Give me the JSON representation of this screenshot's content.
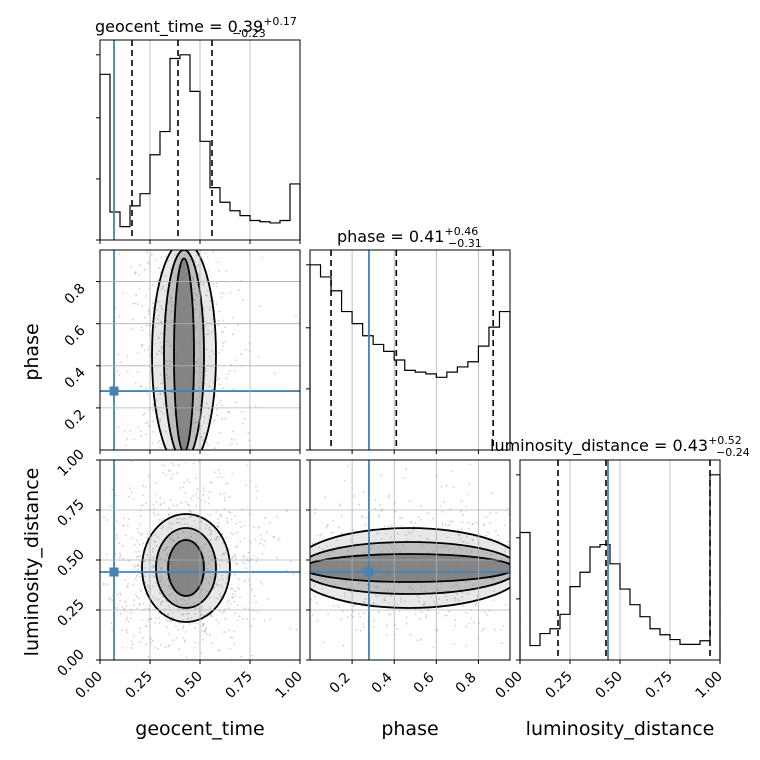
{
  "chart_data": {
    "type": "corner",
    "params": [
      "geocent_time",
      "phase",
      "luminosity_distance"
    ],
    "ranges": [
      [
        0.0,
        1.0
      ],
      [
        0.0,
        0.95
      ],
      [
        0.0,
        1.0
      ]
    ],
    "truths": [
      0.07,
      0.28,
      0.44
    ],
    "truth_color": "#4682b4",
    "grid": true,
    "titles": [
      {
        "lead": "geocent_time = 0.39",
        "plus": "+0.17",
        "minus": "−0.23"
      },
      {
        "lead": "phase = 0.41",
        "plus": "+0.46",
        "minus": "−0.31"
      },
      {
        "lead": "luminosity_distance = 0.43",
        "plus": "+0.52",
        "minus": "−0.24"
      }
    ],
    "quantiles": [
      [
        0.16,
        0.39,
        0.56
      ],
      [
        0.1,
        0.41,
        0.87
      ],
      [
        0.19,
        0.43,
        0.95
      ]
    ],
    "histograms": [
      {
        "param": "geocent_time",
        "edges": [
          0.0,
          0.05,
          0.1,
          0.15,
          0.2,
          0.25,
          0.3,
          0.35,
          0.4,
          0.45,
          0.5,
          0.55,
          0.6,
          0.65,
          0.7,
          0.75,
          0.8,
          0.85,
          0.9,
          0.95,
          1.0
        ],
        "counts": [
          136,
          23,
          11,
          28,
          38,
          70,
          89,
          149,
          152,
          122,
          81,
          43,
          31,
          24,
          20,
          16,
          15,
          14,
          16,
          46
        ]
      },
      {
        "param": "phase",
        "edges": [
          0.0,
          0.05,
          0.1,
          0.15,
          0.2,
          0.25,
          0.3,
          0.35,
          0.4,
          0.45,
          0.5,
          0.55,
          0.6,
          0.65,
          0.7,
          0.75,
          0.8,
          0.85,
          0.9,
          0.95
        ],
        "counts": [
          107,
          100,
          92,
          80,
          73,
          66,
          61,
          57,
          52,
          46,
          45,
          44,
          42,
          45,
          48,
          51,
          60,
          71,
          80
        ]
      },
      {
        "param": "luminosity_distance",
        "edges": [
          0.0,
          0.05,
          0.1,
          0.15,
          0.2,
          0.25,
          0.3,
          0.35,
          0.4,
          0.45,
          0.5,
          0.55,
          0.6,
          0.65,
          0.7,
          0.75,
          0.8,
          0.85,
          0.9,
          0.95,
          1.0
        ],
        "counts": [
          106,
          12,
          22,
          26,
          38,
          61,
          73,
          94,
          96,
          80,
          59,
          46,
          36,
          26,
          21,
          17,
          13,
          13,
          16,
          154
        ]
      }
    ],
    "contours": [
      {
        "x": "geocent_time",
        "y": "phase",
        "levels": [
          {
            "cx": 0.42,
            "cy": 0.45,
            "rx": 0.05,
            "ry": 0.46
          },
          {
            "cx": 0.42,
            "cy": 0.45,
            "rx": 0.1,
            "ry": 0.5
          },
          {
            "cx": 0.42,
            "cy": 0.45,
            "rx": 0.16,
            "ry": 0.54
          }
        ]
      },
      {
        "x": "geocent_time",
        "y": "luminosity_distance",
        "levels": [
          {
            "cx": 0.43,
            "cy": 0.46,
            "rx": 0.09,
            "ry": 0.14
          },
          {
            "cx": 0.43,
            "cy": 0.46,
            "rx": 0.15,
            "ry": 0.2
          },
          {
            "cx": 0.43,
            "cy": 0.46,
            "rx": 0.22,
            "ry": 0.27
          }
        ]
      },
      {
        "x": "phase",
        "y": "luminosity_distance",
        "levels": [
          {
            "cx": 0.47,
            "cy": 0.46,
            "rx": 0.5,
            "ry": 0.07
          },
          {
            "cx": 0.47,
            "cy": 0.46,
            "rx": 0.52,
            "ry": 0.13
          },
          {
            "cx": 0.47,
            "cy": 0.46,
            "rx": 0.55,
            "ry": 0.2
          }
        ]
      }
    ],
    "axis_labels": {
      "bottom": [
        "geocent_time",
        "phase",
        "luminosity_distance"
      ],
      "left": [
        "phase",
        "luminosity_distance"
      ]
    },
    "ticks": {
      "geocent_time": [
        "0.00",
        "0.25",
        "0.50",
        "0.75",
        "1.00"
      ],
      "phase": [
        "0.2",
        "0.4",
        "0.6",
        "0.8"
      ],
      "luminosity_distance": [
        "0.00",
        "0.25",
        "0.50",
        "0.75",
        "1.00"
      ]
    }
  }
}
